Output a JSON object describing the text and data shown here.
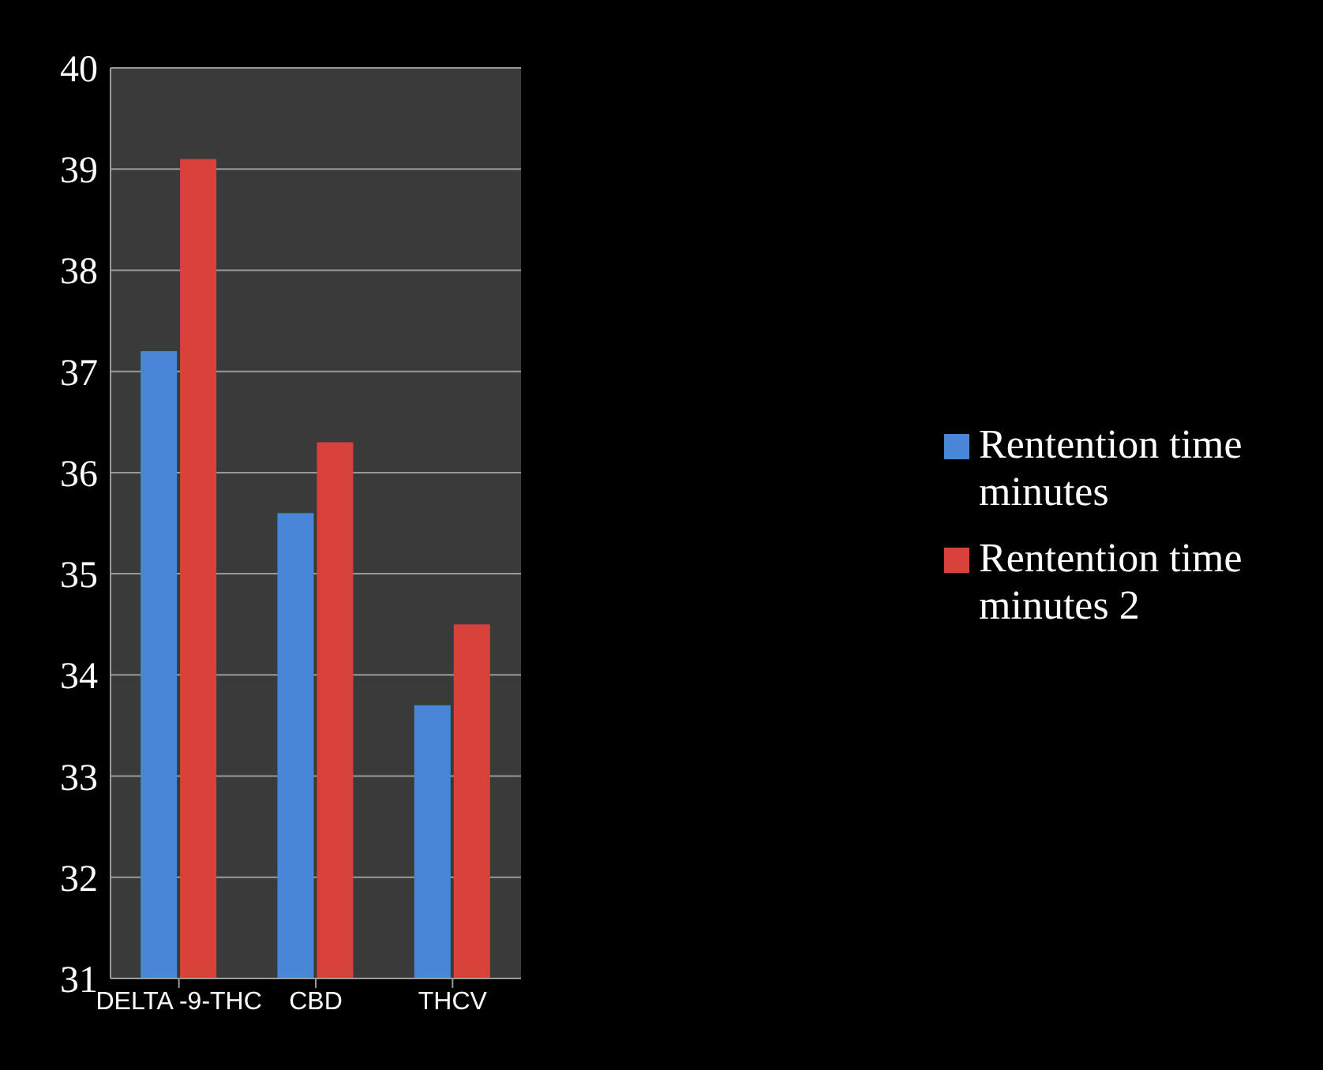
{
  "chart_data": {
    "type": "bar",
    "categories": [
      "DELTA -9-THC",
      "CBD",
      "THCV"
    ],
    "series": [
      {
        "name": "Rentention time minutes",
        "color": "#4a86d8",
        "values": [
          37.2,
          35.6,
          33.7
        ]
      },
      {
        "name": "Rentention time minutes 2",
        "color": "#d9413b",
        "values": [
          39.1,
          36.3,
          34.5
        ]
      }
    ],
    "ylim": [
      31,
      40
    ],
    "yticks": [
      31,
      32,
      33,
      34,
      35,
      36,
      37,
      38,
      39,
      40
    ],
    "grid": "y",
    "legend": "right"
  }
}
